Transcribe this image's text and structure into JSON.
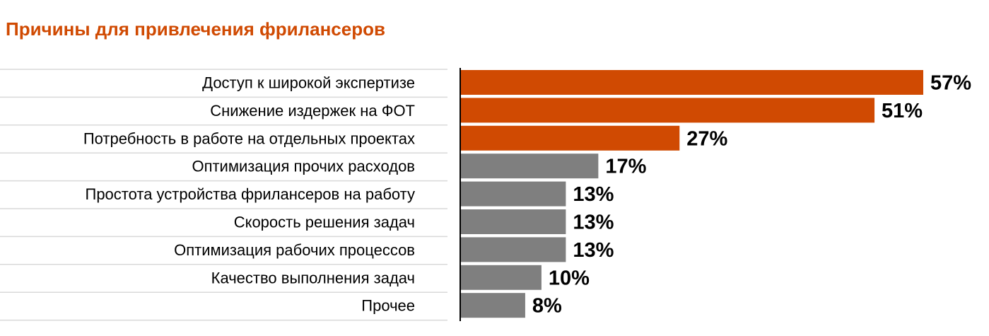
{
  "chart_data": {
    "type": "bar",
    "orientation": "horizontal",
    "title": "Причины для привлечения фрилансеров",
    "categories": [
      "Доступ к широкой экспертизе",
      "Снижение издержек на ФОТ",
      "Потребность в работе на отдельных проектах",
      "Оптимизация прочих расходов",
      "Простота устройства фрилансеров на работу",
      "Скорость решения задач",
      "Оптимизация рабочих процессов",
      "Качество выполнения задач",
      "Прочее"
    ],
    "values": [
      57,
      51,
      27,
      17,
      13,
      13,
      13,
      10,
      8
    ],
    "value_labels": [
      "57%",
      "51%",
      "27%",
      "17%",
      "13%",
      "13%",
      "13%",
      "10%",
      "8%"
    ],
    "highlighted": [
      true,
      true,
      true,
      false,
      false,
      false,
      false,
      false,
      false
    ],
    "xlim": [
      0,
      57
    ],
    "grid": false,
    "legend": "none",
    "colors": {
      "title": "#d04a02",
      "highlight": "#d04a02",
      "default": "#7f7f7f",
      "divider": "#d9d9d9",
      "axis": "#000000"
    }
  }
}
